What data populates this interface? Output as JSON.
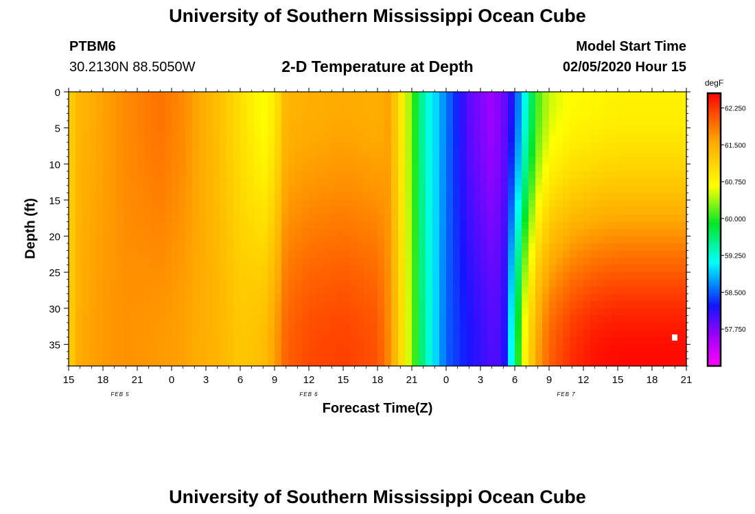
{
  "title_top": "University of Southern Mississippi Ocean Cube",
  "title_bottom": "University of Southern Mississippi Ocean Cube",
  "station": {
    "id": "PTBM6",
    "coords": "30.2130N 88.5050W"
  },
  "plot_title": "2-D Temperature at Depth",
  "model": {
    "label": "Model Start Time",
    "value": "02/05/2020 Hour 15"
  },
  "chart_data": {
    "type": "heatmap",
    "title": "2-D Temperature at Depth",
    "xlabel": "Forecast Time(Z)",
    "ylabel": "Depth (ft)",
    "x_tick_labels": [
      "15",
      "18",
      "21",
      "0",
      "3",
      "6",
      "9",
      "12",
      "15",
      "18",
      "21",
      "0",
      "3",
      "6",
      "9",
      "12",
      "15",
      "18",
      "21"
    ],
    "x_hours": [
      0,
      54
    ],
    "date_labels": [
      {
        "text": "FEB 5",
        "hour": 4.5
      },
      {
        "text": "FEB 6",
        "hour": 21
      },
      {
        "text": "FEB 7",
        "hour": 43.5
      }
    ],
    "y_ticks": [
      0,
      5,
      10,
      15,
      20,
      25,
      30,
      35
    ],
    "ylim": [
      0,
      38
    ],
    "colorbar": {
      "unit": "degF",
      "min": 57.0,
      "max": 62.55,
      "ticks": [
        62.25,
        61.5,
        60.75,
        60.0,
        59.25,
        58.5,
        57.75
      ],
      "tick_labels": [
        "62.250",
        "61.500",
        "60.750",
        "60.000",
        "59.250",
        "58.500",
        "57.750"
      ]
    },
    "temperature_profile": [
      {
        "hour": 0,
        "surface": 61.1,
        "bottom": 61.1
      },
      {
        "hour": 1,
        "surface": 61.45,
        "bottom": 61.55
      },
      {
        "hour": 3,
        "surface": 61.6,
        "bottom": 61.65
      },
      {
        "hour": 5,
        "surface": 61.75,
        "bottom": 61.7
      },
      {
        "hour": 8,
        "surface": 61.9,
        "bottom": 61.65
      },
      {
        "hour": 10,
        "surface": 61.75,
        "bottom": 61.6
      },
      {
        "hour": 13,
        "surface": 61.35,
        "bottom": 61.45
      },
      {
        "hour": 15,
        "surface": 61.0,
        "bottom": 61.25
      },
      {
        "hour": 17,
        "surface": 60.65,
        "bottom": 61.35
      },
      {
        "hour": 18,
        "surface": 60.85,
        "bottom": 61.6
      },
      {
        "hour": 19,
        "surface": 61.45,
        "bottom": 62.0
      },
      {
        "hour": 21,
        "surface": 61.5,
        "bottom": 62.15
      },
      {
        "hour": 24,
        "surface": 61.55,
        "bottom": 62.2
      },
      {
        "hour": 27,
        "surface": 61.5,
        "bottom": 62.1
      },
      {
        "hour": 28,
        "surface": 61.6,
        "bottom": 61.75
      },
      {
        "hour": 29,
        "surface": 60.95,
        "bottom": 61.1
      },
      {
        "hour": 30,
        "surface": 60.2,
        "bottom": 60.3
      },
      {
        "hour": 31,
        "surface": 59.4,
        "bottom": 59.5
      },
      {
        "hour": 33,
        "surface": 58.6,
        "bottom": 58.5
      },
      {
        "hour": 35,
        "surface": 57.9,
        "bottom": 58.2
      },
      {
        "hour": 37,
        "surface": 57.6,
        "bottom": 57.95
      },
      {
        "hour": 38,
        "surface": 57.8,
        "bottom": 58.0
      },
      {
        "hour": 39,
        "surface": 58.3,
        "bottom": 59.6
      },
      {
        "hour": 40,
        "surface": 59.3,
        "bottom": 60.9
      },
      {
        "hour": 41,
        "surface": 60.1,
        "bottom": 61.6
      },
      {
        "hour": 42,
        "surface": 60.5,
        "bottom": 62.0
      },
      {
        "hour": 44,
        "surface": 60.7,
        "bottom": 62.3
      },
      {
        "hour": 46,
        "surface": 60.75,
        "bottom": 62.45
      },
      {
        "hour": 48,
        "surface": 60.8,
        "bottom": 62.5
      },
      {
        "hour": 51,
        "surface": 60.8,
        "bottom": 62.5
      },
      {
        "hour": 54,
        "surface": 60.8,
        "bottom": 62.5
      }
    ]
  }
}
